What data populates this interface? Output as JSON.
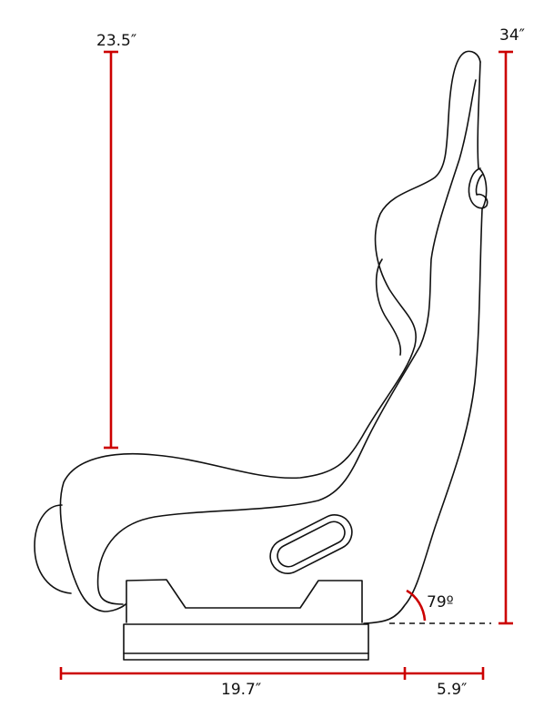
{
  "diagram": {
    "subject": "seat-side-profile",
    "colors": {
      "dimension": "#cc0000",
      "outline": "#111111"
    },
    "dimensions": {
      "back_height": "23.5″",
      "total_height": "34″",
      "seat_depth": "19.7″",
      "back_depth": "5.9″",
      "recline_angle": "79º"
    }
  }
}
